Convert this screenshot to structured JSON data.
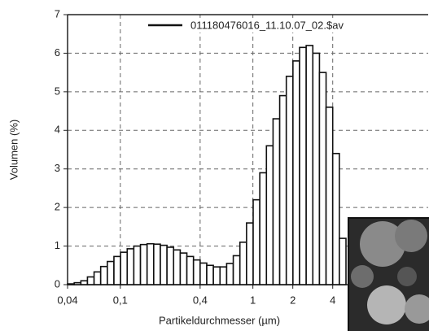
{
  "chart_data": {
    "type": "histogram",
    "x_label": "Partikeldurchmesser (µm)",
    "y_label": "Volumen (%)",
    "x_scale": "log",
    "grid": true,
    "legend": "top-right",
    "bins": [
      0.04,
      0.0449,
      0.0504,
      0.0565,
      0.0634,
      0.0711,
      0.0798,
      0.0895,
      0.1004,
      0.1127,
      0.1264,
      0.1419,
      0.1592,
      0.1786,
      0.2004,
      0.2249,
      0.2523,
      0.2831,
      0.3177,
      0.3564,
      0.3999,
      0.4487,
      0.5035,
      0.5649,
      0.6339,
      0.7113,
      0.7981,
      0.8955,
      1.0048,
      1.1274,
      1.2649,
      1.4193,
      1.5925,
      1.7868,
      2.0048,
      2.2494,
      2.5238,
      2.8318,
      3.1773,
      3.565,
      4.0,
      4.4881,
      5.0357
    ],
    "series": [
      {
        "name": "011180476016_11.10.07_02.$av",
        "color": "#111111",
        "values": [
          0.02,
          0.05,
          0.1,
          0.2,
          0.33,
          0.47,
          0.6,
          0.73,
          0.84,
          0.93,
          1.0,
          1.04,
          1.06,
          1.05,
          1.02,
          0.97,
          0.9,
          0.82,
          0.73,
          0.64,
          0.56,
          0.5,
          0.46,
          0.46,
          0.55,
          0.75,
          1.1,
          1.6,
          2.2,
          2.9,
          3.6,
          4.3,
          4.9,
          5.4,
          5.8,
          6.15,
          6.2,
          6.0,
          5.5,
          4.6,
          3.4,
          1.2
        ]
      }
    ],
    "xlim": [
      0.04,
      21
    ],
    "xticks": [
      {
        "value": 0.04,
        "label": "0,04"
      },
      {
        "value": 0.1,
        "label": "0,1"
      },
      {
        "value": 0.4,
        "label": "0,4"
      },
      1,
      2,
      4
    ],
    "ylim": [
      0,
      7
    ],
    "yticks": [
      0,
      1,
      2,
      3,
      4,
      5,
      6,
      7
    ]
  }
}
